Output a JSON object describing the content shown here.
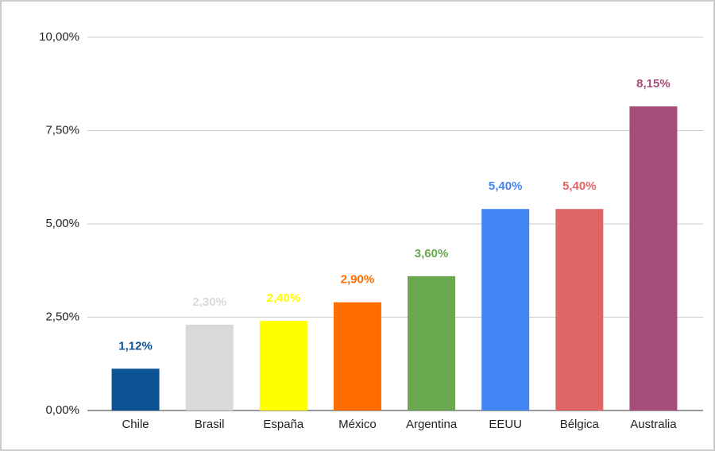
{
  "chart_data": {
    "type": "bar",
    "categories": [
      "Chile",
      "Brasil",
      "España",
      "México",
      "Argentina",
      "EEUU",
      "Bélgica",
      "Australia"
    ],
    "values": [
      1.12,
      2.3,
      2.4,
      2.9,
      3.6,
      5.4,
      5.4,
      8.15
    ],
    "value_labels": [
      "1,12%",
      "2,30%",
      "2,40%",
      "2,90%",
      "3,60%",
      "5,40%",
      "5,40%",
      "8,15%"
    ],
    "colors": [
      "#0b5394",
      "#d9d9d9",
      "#ffff00",
      "#ff6d01",
      "#6aa84f",
      "#4285f4",
      "#e06666",
      "#a64d79"
    ],
    "ylim": [
      0,
      10
    ],
    "yticks": [
      {
        "value": 0,
        "label": "0,00%"
      },
      {
        "value": 2.5,
        "label": "2,50%"
      },
      {
        "value": 5,
        "label": "5,00%"
      },
      {
        "value": 7.5,
        "label": "7,50%"
      },
      {
        "value": 10,
        "label": "10,00%"
      }
    ],
    "grid": true
  }
}
